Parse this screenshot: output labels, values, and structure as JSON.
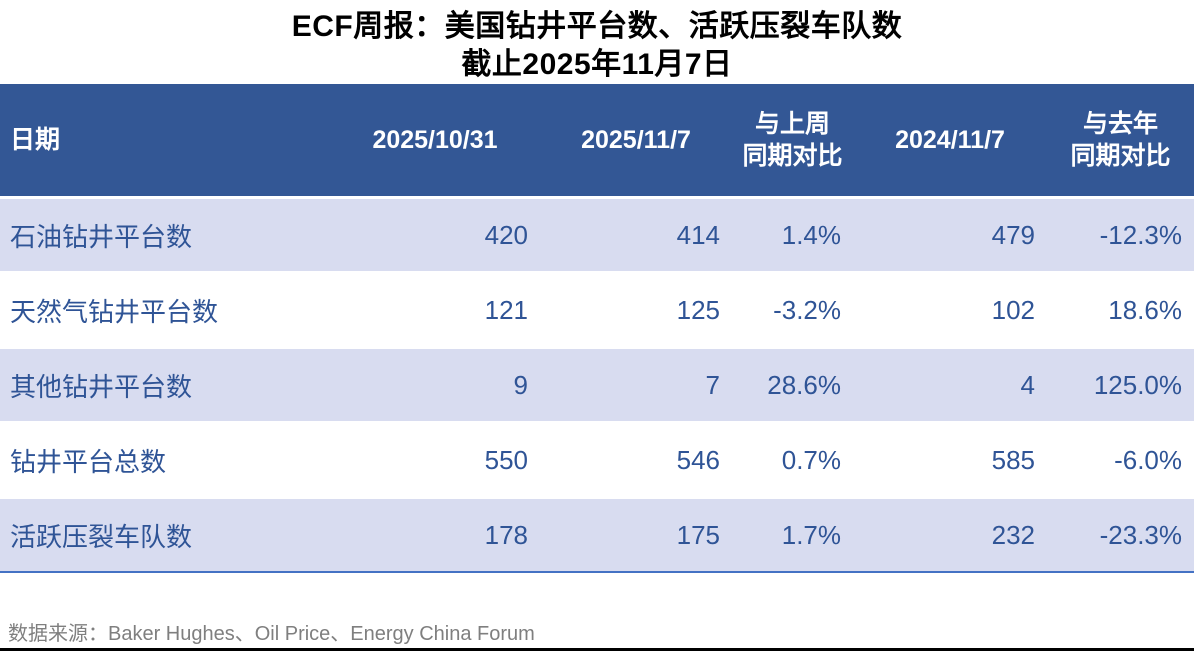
{
  "title": {
    "line1": "ECF周报：美国钻井平台数、活跃压裂车队数",
    "line2": "截止2025年11月7日"
  },
  "table": {
    "headers": {
      "date": "日期",
      "prev_week": "2025/10/31",
      "this_week": "2025/11/7",
      "wow_line1": "与上周",
      "wow_line2": "同期对比",
      "last_year": "2024/11/7",
      "yoy_line1": "与去年",
      "yoy_line2": "同期对比"
    },
    "rows": [
      {
        "label": "石油钻井平台数",
        "cells": [
          "420",
          "414",
          "1.4%",
          "479",
          "-12.3%"
        ]
      },
      {
        "label": "天然气钻井平台数",
        "cells": [
          "121",
          "125",
          "-3.2%",
          "102",
          "18.6%"
        ]
      },
      {
        "label": "其他钻井平台数",
        "cells": [
          "9",
          "7",
          "28.6%",
          "4",
          "125.0%"
        ]
      },
      {
        "label": "钻井平台总数",
        "cells": [
          "550",
          "546",
          "0.7%",
          "585",
          "-6.0%"
        ]
      },
      {
        "label": "活跃压裂车队数",
        "cells": [
          "178",
          "175",
          "1.7%",
          "232",
          "-23.3%"
        ]
      }
    ]
  },
  "footer": {
    "source": "数据来源：Baker Hughes、Oil Price、Energy China Forum"
  },
  "colors": {
    "header_bg": "#335795",
    "row_alt_bg": "#D8DCF0",
    "text_blue": "#2F5496",
    "rule_blue": "#4472C4",
    "footer_gray": "#7F7F7F",
    "bottom_line": "#000000"
  },
  "chart_data": {
    "type": "table",
    "title": "ECF周报：美国钻井平台数、活跃压裂车队数 截止2025年11月7日",
    "columns": [
      "日期",
      "2025/10/31",
      "2025/11/7",
      "与上周同期对比",
      "2024/11/7",
      "与去年同期对比"
    ],
    "rows": [
      [
        "石油钻井平台数",
        420,
        414,
        "1.4%",
        479,
        "-12.3%"
      ],
      [
        "天然气钻井平台数",
        121,
        125,
        "-3.2%",
        102,
        "18.6%"
      ],
      [
        "其他钻井平台数",
        9,
        7,
        "28.6%",
        4,
        "125.0%"
      ],
      [
        "钻井平台总数",
        550,
        546,
        "0.7%",
        585,
        "-6.0%"
      ],
      [
        "活跃压裂车队数",
        178,
        175,
        "1.7%",
        232,
        "-23.3%"
      ]
    ],
    "source": "Baker Hughes、Oil Price、Energy China Forum"
  }
}
